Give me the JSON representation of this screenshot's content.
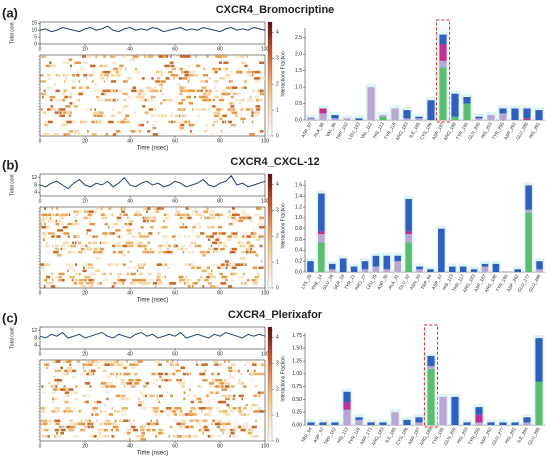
{
  "chart_data": [
    {
      "type": "line",
      "panel_label": "(a)",
      "title": "CXCR4_Bromocriptine",
      "ylabel": "Total cont",
      "color": "#1f3f78",
      "x": [
        0,
        2.5,
        5,
        7.5,
        10,
        12.5,
        15,
        17.5,
        20,
        22.5,
        25,
        27.5,
        30,
        32.5,
        35,
        37.5,
        40,
        42.5,
        45,
        47.5,
        50,
        52.5,
        55,
        57.5,
        60,
        62.5,
        65,
        67.5,
        70,
        72.5,
        75,
        77.5,
        80,
        82.5,
        85,
        87.5,
        90,
        92.5,
        95,
        97.5,
        100
      ],
      "values": [
        10,
        11,
        9,
        10,
        12,
        11,
        10,
        9,
        11,
        12,
        10,
        11,
        13,
        10,
        9,
        11,
        12,
        10,
        11,
        10,
        12,
        11,
        9,
        10,
        11,
        12,
        10,
        11,
        10,
        12,
        11,
        10,
        9,
        11,
        12,
        10,
        11,
        10,
        12,
        11,
        10
      ],
      "xlim": [
        0,
        100
      ],
      "xticks": [
        0,
        20,
        40,
        60,
        80,
        100
      ],
      "ylim": [
        0,
        16
      ],
      "yticks": [
        0,
        5,
        10,
        15
      ],
      "heatmap": {
        "xlabel": "Time (nsec)",
        "xticks": [
          0,
          20,
          40,
          60,
          80,
          100
        ],
        "cticks": [
          0,
          1,
          2,
          3,
          4
        ]
      }
    },
    {
      "type": "stacked_bar",
      "ylabel": "Interactions Fraction",
      "categories": [
        "ASP_97",
        "ALA_98",
        "VAL_99",
        "TRP_102",
        "LEU_103",
        "VAL_112",
        "HIS_113",
        "TYR_116",
        "ARG_183",
        "ILE_185",
        "CYS_186",
        "ASP_187",
        "ARG_188",
        "TYR_190",
        "GLN_200",
        "HIS_203",
        "TYR_255",
        "ASP_262",
        "GLU_288",
        "HIS_281"
      ],
      "series": [
        {
          "color": "#5cbd6e",
          "values": [
            0,
            0,
            0,
            0,
            0,
            0,
            0.1,
            0,
            0,
            0,
            0,
            1.6,
            0.1,
            0.5,
            0,
            0,
            0,
            0,
            0,
            0
          ]
        },
        {
          "color": "#b9a6d3",
          "values": [
            0.05,
            0.2,
            0.05,
            0.05,
            0,
            1.0,
            0.05,
            0.35,
            0.05,
            0.05,
            0,
            0.2,
            0,
            0,
            0.05,
            0.15,
            0.2,
            0,
            0,
            0
          ]
        },
        {
          "color": "#c2308f",
          "values": [
            0,
            0.15,
            0,
            0,
            0,
            0,
            0,
            0,
            0,
            0,
            0,
            0.5,
            0,
            0,
            0,
            0,
            0,
            0,
            0.05,
            0
          ]
        },
        {
          "color": "#2f5fbf",
          "values": [
            0.02,
            0,
            0.1,
            0,
            0.05,
            0,
            0,
            0,
            0.25,
            0.05,
            0.6,
            0.3,
            0.7,
            0.2,
            0.05,
            0,
            0.15,
            0.35,
            0.3,
            0.3
          ]
        }
      ],
      "ylim": [
        0,
        2.8
      ],
      "yticks": [
        {
          "value": 0,
          "label": "0.0"
        },
        {
          "value": 0.5,
          "label": "0.5"
        },
        {
          "value": 1,
          "label": "1.0"
        },
        {
          "value": 1.5,
          "label": "1.5"
        },
        {
          "value": 2,
          "label": "2.0"
        },
        {
          "value": 2.5,
          "label": "2.5"
        }
      ],
      "highlight": 11
    },
    {
      "type": "line",
      "panel_label": "(b)",
      "title": "CXCR4_CXCL-12",
      "ylabel": "Total cont",
      "color": "#1f3f78",
      "x": [
        0,
        2.5,
        5,
        7.5,
        10,
        12.5,
        15,
        17.5,
        20,
        22.5,
        25,
        27.5,
        30,
        32.5,
        35,
        37.5,
        40,
        42.5,
        45,
        47.5,
        50,
        52.5,
        55,
        57.5,
        60,
        62.5,
        65,
        67.5,
        70,
        72.5,
        75,
        77.5,
        80,
        82.5,
        85,
        87.5,
        90,
        92.5,
        95,
        97.5,
        100
      ],
      "values": [
        8,
        7,
        9,
        10,
        8,
        6,
        9,
        11,
        8,
        7,
        9,
        8,
        10,
        7,
        9,
        12,
        8,
        7,
        9,
        10,
        8,
        9,
        7,
        8,
        10,
        9,
        7,
        8,
        9,
        11,
        8,
        7,
        9,
        10,
        13,
        8,
        9,
        7,
        8,
        9,
        10
      ],
      "xlim": [
        0,
        100
      ],
      "xticks": [
        0,
        20,
        40,
        60,
        80,
        100
      ],
      "ylim": [
        2,
        14
      ],
      "yticks": [
        4,
        8,
        12
      ],
      "heatmap": {
        "xlabel": "Time (nsec)",
        "xticks": [
          0,
          20,
          40,
          60,
          80,
          100
        ],
        "cticks": [
          0,
          1,
          2,
          3,
          4
        ]
      }
    },
    {
      "type": "stacked_bar",
      "ylabel": "Interactions Fraction",
      "categories": [
        "LYS_25",
        "PHE_14",
        "GLU_16",
        "SER_18",
        "TYR_21",
        "PRO_27",
        "LEU_29",
        "ASP_30",
        "ALA_31",
        "GLU_32",
        "ASN_33",
        "TRP_94",
        "ASP_97",
        "HIS_113",
        "THR_117",
        "ARG_183",
        "ASP_187",
        "ARG_188",
        "TYR_190",
        "ASP_262",
        "GLU_277",
        "GLU_288"
      ],
      "series": [
        {
          "color": "#5cbd6e",
          "values": [
            0,
            0.55,
            0,
            0,
            0,
            0,
            0,
            0,
            0,
            0.55,
            0,
            0,
            0,
            0,
            0,
            0,
            0,
            0,
            0,
            0,
            1.1,
            0
          ]
        },
        {
          "color": "#b9a6d3",
          "values": [
            0,
            0.15,
            0.05,
            0,
            0,
            0.05,
            0.1,
            0.05,
            0.2,
            0.15,
            0.05,
            0,
            0,
            0,
            0,
            0,
            0.1,
            0,
            0,
            0,
            0.05,
            0.05
          ]
        },
        {
          "color": "#c2308f",
          "values": [
            0,
            0.05,
            0,
            0,
            0,
            0,
            0,
            0,
            0,
            0.05,
            0,
            0,
            0,
            0,
            0,
            0,
            0,
            0,
            0,
            0,
            0,
            0
          ]
        },
        {
          "color": "#2f5fbf",
          "values": [
            0.2,
            0.7,
            0.1,
            0.25,
            0.1,
            0.15,
            0.2,
            0.25,
            0.1,
            0.6,
            0.05,
            0.05,
            0.8,
            0.1,
            0.1,
            0.05,
            0.05,
            0.15,
            0,
            0.05,
            0.45,
            0.15
          ]
        }
      ],
      "ylim": [
        0,
        1.7
      ],
      "yticks": [
        {
          "value": 0,
          "label": "0.0"
        },
        {
          "value": 0.2,
          "label": "0.2"
        },
        {
          "value": 0.4,
          "label": "0.4"
        },
        {
          "value": 0.6,
          "label": "0.6"
        },
        {
          "value": 0.8,
          "label": "0.8"
        },
        {
          "value": 1,
          "label": "1.0"
        },
        {
          "value": 1.2,
          "label": "1.2"
        },
        {
          "value": 1.4,
          "label": "1.4"
        },
        {
          "value": 1.6,
          "label": "1.6"
        }
      ]
    },
    {
      "type": "line",
      "panel_label": "(c)",
      "title": "CXCR4_Plerixafor",
      "ylabel": "Total cont",
      "color": "#1f3f78",
      "x": [
        0,
        2.5,
        5,
        7.5,
        10,
        12.5,
        15,
        17.5,
        20,
        22.5,
        25,
        27.5,
        30,
        32.5,
        35,
        37.5,
        40,
        42.5,
        45,
        47.5,
        50,
        52.5,
        55,
        57.5,
        60,
        62.5,
        65,
        67.5,
        70,
        72.5,
        75,
        77.5,
        80,
        82.5,
        85,
        87.5,
        90,
        92.5,
        95,
        97.5,
        100
      ],
      "values": [
        9,
        8,
        10,
        9,
        11,
        8,
        9,
        10,
        8,
        9,
        10,
        11,
        9,
        8,
        10,
        9,
        8,
        10,
        11,
        9,
        10,
        8,
        9,
        10,
        9,
        11,
        8,
        9,
        10,
        9,
        8,
        10,
        9,
        11,
        10,
        9,
        8,
        10,
        9,
        10,
        9
      ],
      "xlim": [
        0,
        100
      ],
      "xticks": [
        0,
        20,
        40,
        60,
        80,
        100
      ],
      "ylim": [
        2,
        14
      ],
      "yticks": [
        4,
        8,
        12
      ],
      "heatmap": {
        "xlabel": "Time (nsec)",
        "xticks": [
          0,
          20,
          40,
          60,
          80,
          100
        ],
        "cticks": [
          0,
          1,
          2,
          3,
          4
        ]
      }
    },
    {
      "type": "stacked_bar",
      "ylabel": "Interactions Fraction",
      "categories": [
        "TRP_94",
        "ASP_97",
        "TRP_102",
        "HIS_113",
        "TYR_116",
        "ASP_171",
        "ARG_183",
        "ILE_185",
        "CYS_186",
        "ASP_187",
        "ARG_188",
        "TYR_190",
        "GLN_200",
        "HIS_203",
        "TYR_255",
        "ASP_262",
        "GLU_277",
        "HIS_281",
        "ILE_284",
        "GLU_288"
      ],
      "series": [
        {
          "color": "#5cbd6e",
          "values": [
            0,
            0,
            0,
            0,
            0,
            0,
            0,
            0,
            0,
            0,
            1.1,
            0,
            0,
            0,
            0,
            0,
            0,
            0,
            0,
            0.85
          ]
        },
        {
          "color": "#b9a6d3",
          "values": [
            0,
            0,
            0,
            0.3,
            0.1,
            0,
            0,
            0.25,
            0,
            0.05,
            0.05,
            0.55,
            0,
            0,
            0.05,
            0,
            0,
            0,
            0.05,
            0
          ]
        },
        {
          "color": "#c2308f",
          "values": [
            0,
            0,
            0,
            0.15,
            0,
            0,
            0,
            0,
            0,
            0,
            0,
            0,
            0,
            0,
            0.15,
            0,
            0,
            0,
            0,
            0
          ]
        },
        {
          "color": "#2f5fbf",
          "values": [
            0.05,
            0.05,
            0.05,
            0.2,
            0.05,
            0.05,
            0.05,
            0,
            0.1,
            0.1,
            0.2,
            0,
            0.55,
            0.05,
            0.15,
            0.05,
            0.05,
            0.05,
            0.1,
            0.85
          ]
        }
      ],
      "ylim": [
        0,
        1.8
      ],
      "yticks": [
        {
          "value": 0,
          "label": "0.00"
        },
        {
          "value": 0.25,
          "label": "0.25"
        },
        {
          "value": 0.5,
          "label": "0.50"
        },
        {
          "value": 0.75,
          "label": "0.75"
        },
        {
          "value": 1,
          "label": "1.00"
        },
        {
          "value": 1.25,
          "label": "1.25"
        },
        {
          "value": 1.5,
          "label": "1.50"
        },
        {
          "value": 1.75,
          "label": "1.75"
        }
      ],
      "highlight": 10
    }
  ]
}
